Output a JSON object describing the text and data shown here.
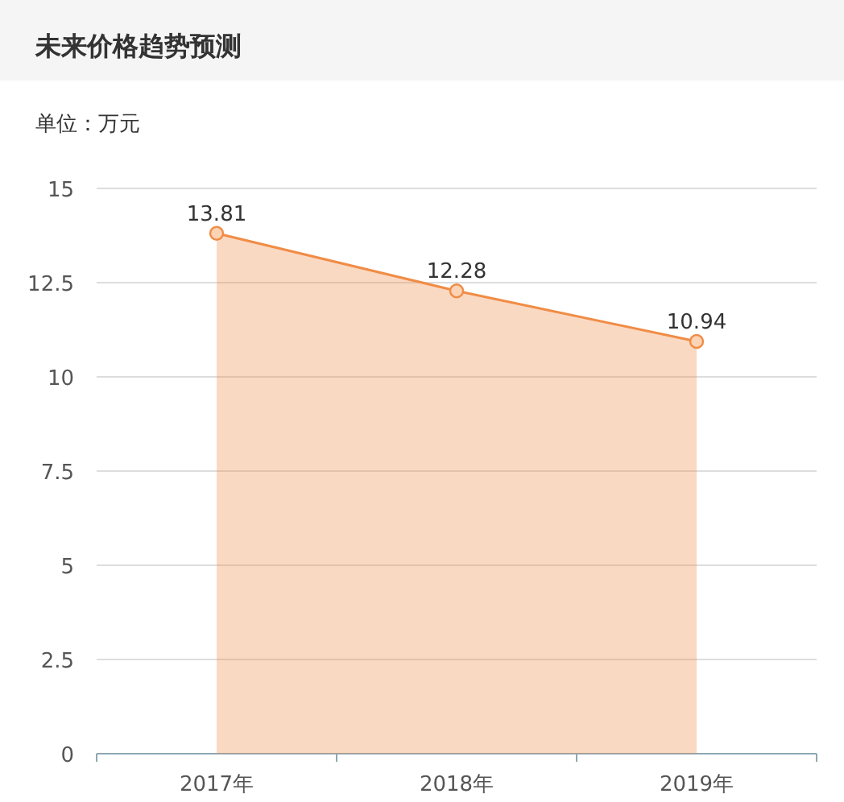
{
  "chart_data": {
    "type": "area",
    "title": "未来价格趋势预测",
    "subtitle": "单位：万元",
    "categories": [
      "2017年",
      "2018年",
      "2019年"
    ],
    "series": [
      {
        "color": "#f08c46",
        "values": [
          13.81,
          12.28,
          10.94
        ]
      }
    ],
    "ylim": [
      0,
      15
    ],
    "yticks": [
      0,
      2.5,
      5,
      7.5,
      10,
      12.5,
      15
    ],
    "grid": "y",
    "marker": "circle",
    "data_labels": true
  }
}
